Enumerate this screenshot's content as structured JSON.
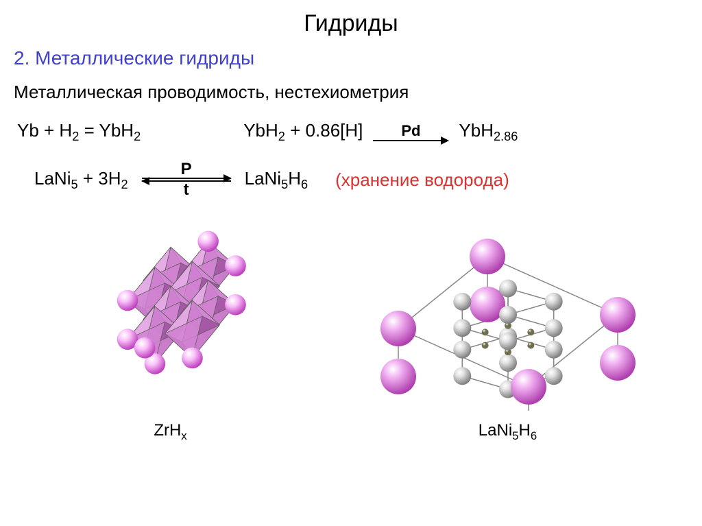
{
  "title": "Гидриды",
  "subtitle": {
    "text": "2. Металлические гидриды",
    "color": "#4040d0"
  },
  "desc": "Металлическая проводимость, нестехиометрия",
  "eq1": {
    "left": "Yb + H<sub>2</sub> = YbH<sub>2</sub>",
    "mid_left": "YbH<sub>2</sub> + 0.86[H]",
    "arrow_top": "Pd",
    "right": "YbH<sub>2.86</sub>"
  },
  "eq2": {
    "left": "LaNi<sub>5</sub> + 3H<sub>2</sub>",
    "arrow_top": "P",
    "arrow_bottom": "t",
    "right": "LaNi<sub>5</sub>H<sub>6</sub>",
    "note": "(хранение водорода)",
    "note_color": "#e03030"
  },
  "diagram1": {
    "label": "ZrH<sub>x</sub>",
    "face_colors": [
      "#e8b0e8",
      "#d080d0",
      "#a050a0"
    ],
    "sphere_color_light": "#f8c0f8",
    "sphere_color_dark": "#c040c0",
    "sphere_highlight": "#ffffff",
    "stroke": "#606060"
  },
  "diagram2": {
    "label": "LaNi<sub>5</sub>H<sub>6</sub>",
    "large_sphere_light": "#f0b0f0",
    "large_sphere_dark": "#b040b0",
    "mid_sphere_light": "#e0e0e0",
    "mid_sphere_dark": "#808080",
    "small_sphere": "#707050",
    "stroke": "#888888"
  },
  "colors": {
    "background": "#ffffff",
    "text": "#000000"
  }
}
